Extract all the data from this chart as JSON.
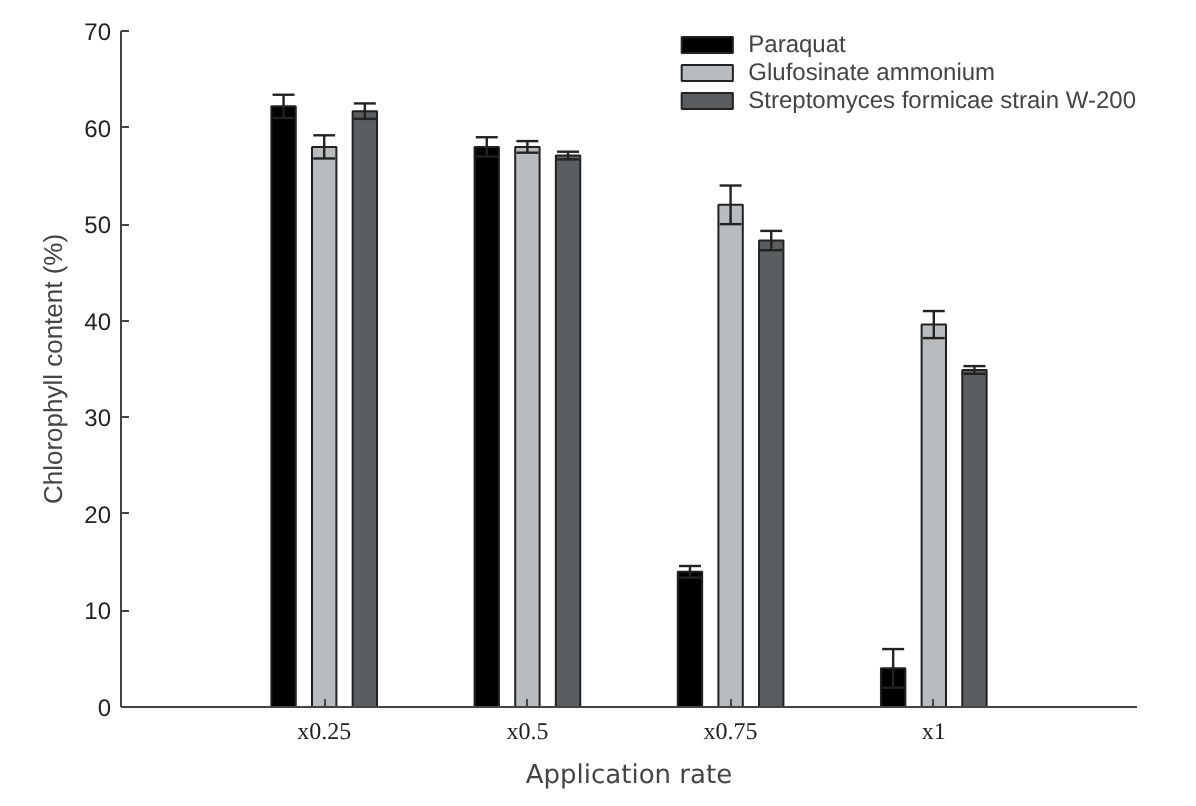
{
  "chart_data": {
    "type": "bar",
    "xlabel": "Application rate",
    "ylabel": "Chlorophyll content (%)",
    "categories": [
      "x0.25",
      "x0.5",
      "x0.75",
      "x1"
    ],
    "series": [
      {
        "name": "Paraquat",
        "color": "#000000",
        "values": [
          62.2,
          58,
          14,
          4
        ],
        "errors": [
          1.2,
          1,
          0.6,
          2
        ]
      },
      {
        "name": "Glufosinate ammonium",
        "color": "#b9bcbe",
        "values": [
          58,
          58,
          52,
          39.6
        ],
        "errors": [
          1.2,
          0.6,
          2,
          1.4
        ]
      },
      {
        "name": "Streptomyces formicae strain W-200",
        "color": "#5a5e61",
        "values": [
          61.7,
          57.1,
          48.3,
          34.9
        ],
        "errors": [
          0.8,
          0.4,
          1,
          0.4
        ]
      }
    ],
    "ylim": [
      0,
      70
    ],
    "yticks": [
      0,
      10,
      20,
      30,
      40,
      50,
      60,
      70
    ],
    "grid": false,
    "legend": "top right"
  }
}
